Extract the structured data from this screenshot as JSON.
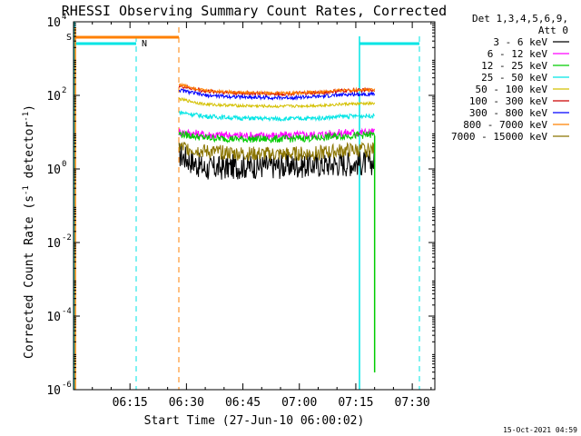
{
  "chart_data": {
    "type": "line",
    "title": "RHESSI Observing Summary Count Rates, Corrected",
    "xlabel": "Start Time (27-Jun-10 06:00:02)",
    "ylabel_parts": [
      "Corrected Count Rate (s",
      "-1",
      " detector",
      "-1",
      ")"
    ],
    "y_scale": "log",
    "ylim": [
      1e-06,
      10000.0
    ],
    "y_ticks": [
      {
        "v": 10000.0,
        "base": "10",
        "exp": "4"
      },
      {
        "v": 100.0,
        "base": "10",
        "exp": "2"
      },
      {
        "v": 1.0,
        "base": "10",
        "exp": "0"
      },
      {
        "v": 0.01,
        "base": "10",
        "exp": "-2"
      },
      {
        "v": 0.0001,
        "base": "10",
        "exp": "-4"
      },
      {
        "v": 1e-06,
        "base": "10",
        "exp": "-6"
      }
    ],
    "xlim_minutes": [
      0,
      96
    ],
    "x_ticks": [
      {
        "m": 15,
        "label": "06:15"
      },
      {
        "m": 30,
        "label": "06:30"
      },
      {
        "m": 45,
        "label": "06:45"
      },
      {
        "m": 60,
        "label": "07:00"
      },
      {
        "m": 75,
        "label": "07:15"
      },
      {
        "m": 90,
        "label": "07:30"
      }
    ],
    "legend": {
      "header": [
        "Det 1,3,4,5,6,9,",
        "Att 0"
      ],
      "placement": "right"
    },
    "series": [
      {
        "name": "3 - 6 keV",
        "color": "#000000",
        "x": [
          28,
          35,
          45,
          55,
          65,
          72,
          80
        ],
        "y": [
          2.5,
          1.0,
          1.2,
          1.2,
          1.3,
          1.4,
          1.5
        ]
      },
      {
        "name": "6 - 12 keV",
        "color": "#ff00ff",
        "x": [
          28,
          35,
          45,
          55,
          65,
          72,
          80
        ],
        "y": [
          10,
          8.5,
          8,
          8,
          8.5,
          9.5,
          10
        ]
      },
      {
        "name": "12 - 25 keV",
        "color": "#00cc00",
        "x": [
          28,
          35,
          45,
          55,
          65,
          72,
          80
        ],
        "y": [
          9,
          7,
          6.5,
          6.5,
          7,
          8,
          8.5
        ]
      },
      {
        "name": "25 - 50 keV",
        "color": "#00e5e5",
        "x": [
          28,
          35,
          45,
          55,
          65,
          72,
          80
        ],
        "y": [
          35,
          27,
          24,
          23,
          24,
          27,
          28
        ]
      },
      {
        "name": "50 - 100 keV",
        "color": "#d4c000",
        "x": [
          28,
          35,
          45,
          55,
          65,
          72,
          80
        ],
        "y": [
          80,
          57,
          52,
          50,
          53,
          58,
          60
        ]
      },
      {
        "name": "100 - 300 keV",
        "color": "#cc0000",
        "x": [
          28,
          35,
          45,
          55,
          65,
          72,
          80
        ],
        "y": [
          180,
          130,
          115,
          110,
          118,
          135,
          140
        ]
      },
      {
        "name": "300 - 800 keV",
        "color": "#0000ff",
        "x": [
          28,
          35,
          45,
          55,
          65,
          72,
          80
        ],
        "y": [
          140,
          100,
          90,
          86,
          92,
          105,
          110
        ]
      },
      {
        "name": "800 - 7000 keV",
        "color": "#ff8000",
        "x": [
          28,
          35,
          45,
          55,
          65,
          72,
          80
        ],
        "y": [
          200,
          135,
          120,
          115,
          122,
          140,
          145
        ]
      },
      {
        "name": "7000 - 15000 keV",
        "color": "#8b7500",
        "x": [
          28,
          35,
          45,
          55,
          65,
          72,
          80
        ],
        "y": [
          4,
          3,
          2.6,
          2.5,
          2.7,
          3.2,
          3.4
        ]
      }
    ],
    "annotations": {
      "saa_label": "S",
      "night_label": "N",
      "footer_date": "15-Oct-2021 04:59"
    }
  }
}
